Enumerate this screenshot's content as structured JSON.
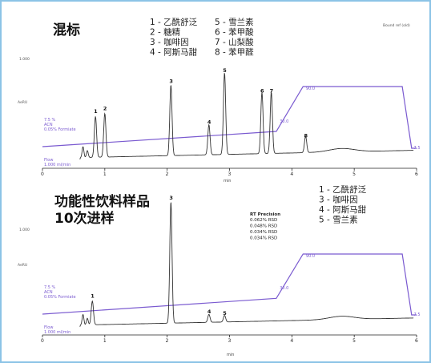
{
  "chart_data": [
    {
      "type": "line",
      "title": "混标",
      "legend": [
        "1 - 乙酰舒泛",
        "2 - 糖精",
        "3 - 咖啡因",
        "4 - 阿斯马甜",
        "5 - 雪兰素",
        "6 - 苯甲酸",
        "7 - 山梨酸",
        "8 - 苯甲醛"
      ],
      "legend_label": "Bound ref (old)",
      "ylabel": "AeRU",
      "ytick": "1.000",
      "xlabel": "min",
      "xticks": [
        "0",
        "1",
        "2",
        "3",
        "4",
        "5",
        "6"
      ],
      "xlim": [
        0,
        6.0
      ],
      "peaks": [
        {
          "label": "1",
          "x": 0.85,
          "height": 0.3
        },
        {
          "label": "2",
          "x": 1.0,
          "height": 0.32
        },
        {
          "label": "3",
          "x": 2.06,
          "height": 0.52
        },
        {
          "label": "4",
          "x": 2.67,
          "height": 0.22
        },
        {
          "label": "5",
          "x": 2.92,
          "height": 0.6
        },
        {
          "label": "6",
          "x": 3.52,
          "height": 0.45
        },
        {
          "label": "7",
          "x": 3.67,
          "height": 0.45
        },
        {
          "label": "8",
          "x": 4.22,
          "height": 0.12
        }
      ],
      "gradient": {
        "x": [
          0,
          3.75,
          4.18,
          5.77,
          5.92,
          6.0
        ],
        "y": [
          7.5,
          30.0,
          90.0,
          90.0,
          7.5,
          7.5
        ],
        "start_label": "7.5 %\nACN\n0.05% Formiate",
        "labels": [
          "90.0",
          "30.0",
          "7.5"
        ]
      },
      "flow_label": "Flow\n1.000 ml/min"
    },
    {
      "type": "line",
      "title": "功能性饮料样品\n10次进样",
      "legend": [
        "1 - 乙酰舒泛",
        "3 - 咖啡因",
        "4 - 阿斯马甜",
        "5 - 雪兰素"
      ],
      "stats_title": "RT Precision",
      "stats": [
        "0.062% RSD",
        "0.048% RSD",
        "0.034% RSD",
        "0.034% RSD"
      ],
      "ylabel": "AeRU",
      "ytick": "1.000",
      "xlabel": "min",
      "xticks": [
        "0",
        "1",
        "2",
        "3",
        "4",
        "5",
        "6"
      ],
      "xlim": [
        0,
        6.0
      ],
      "peaks": [
        {
          "label": "1",
          "x": 0.8,
          "height": 0.18
        },
        {
          "label": "3",
          "x": 2.06,
          "height": 0.92
        },
        {
          "label": "4",
          "x": 2.67,
          "height": 0.06
        },
        {
          "label": "5",
          "x": 2.92,
          "height": 0.05
        }
      ],
      "gradient": {
        "x": [
          0,
          3.75,
          4.18,
          5.77,
          5.92,
          6.0
        ],
        "y": [
          7.5,
          30.0,
          90.0,
          90.0,
          7.5,
          7.5
        ],
        "start_label": "7.5 %\nACN\n0.05% Formiate",
        "labels": [
          "90.0",
          "30.0",
          "7.5"
        ]
      },
      "flow_label": "Flow\n1.000 ml/min"
    }
  ],
  "colors": {
    "frame": "#8cc3e6",
    "trace": "#333333",
    "gradient": "#7a5ad0"
  }
}
